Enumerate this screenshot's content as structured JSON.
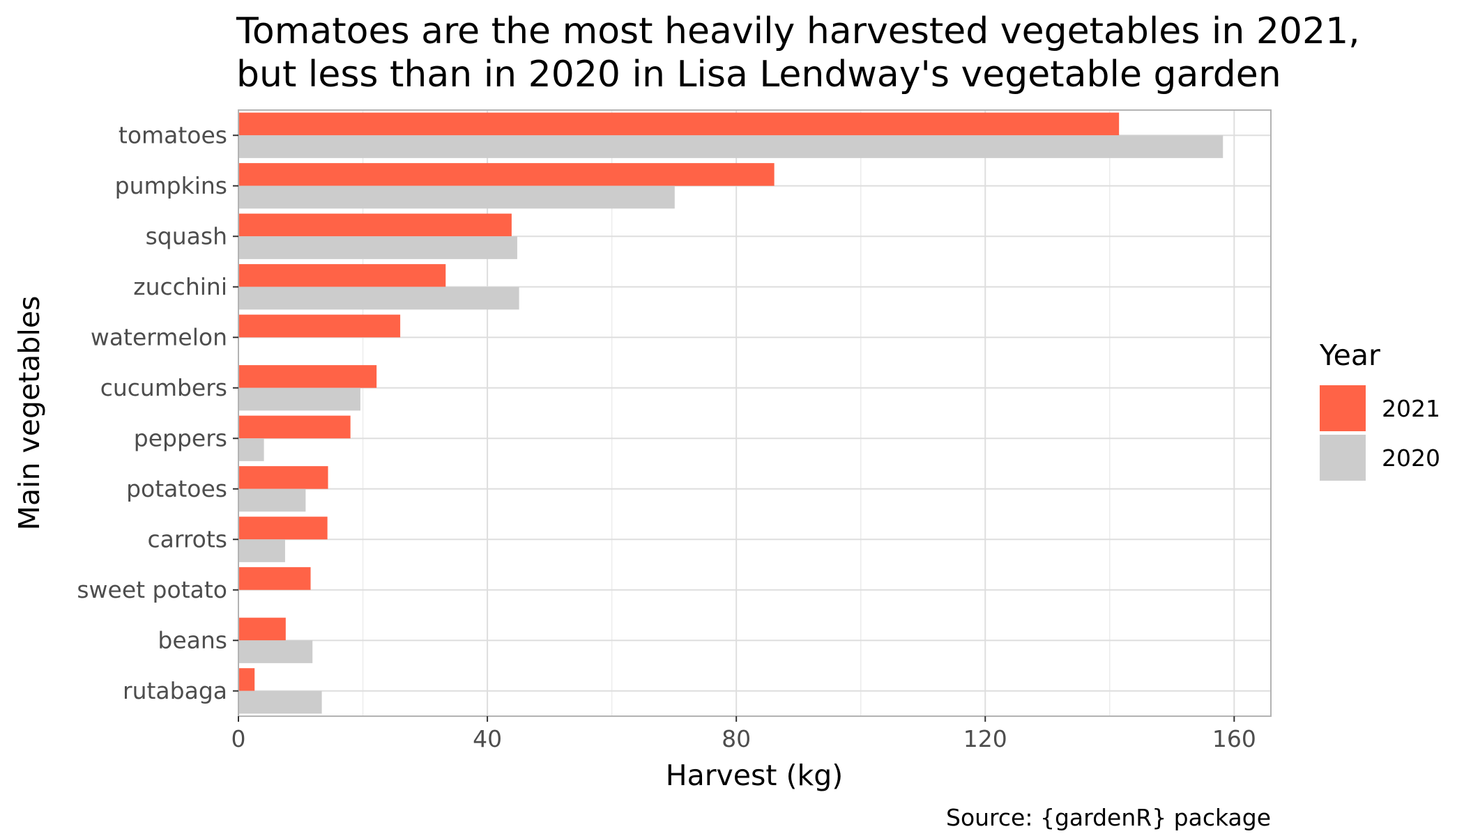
{
  "chart_data": {
    "type": "bar",
    "orientation": "horizontal",
    "title": "Tomatoes are the most heavily harvested vegetables in 2021,\nbut less than in 2020 in Lisa Lendway's vegetable garden",
    "title_lines": [
      "Tomatoes are the most heavily harvested vegetables in 2021,",
      "but less than in 2020 in Lisa Lendway's vegetable garden"
    ],
    "xlabel": "Harvest (kg)",
    "ylabel": "Main vegetables",
    "caption": "Source: {gardenR} package",
    "xlim": [
      0,
      165.9
    ],
    "x_ticks": [
      0,
      40,
      80,
      120,
      160
    ],
    "grid": true,
    "legend": {
      "title": "Year",
      "position": "right"
    },
    "categories": [
      "tomatoes",
      "pumpkins",
      "squash",
      "zucchini",
      "watermelon",
      "cucumbers",
      "peppers",
      "potatoes",
      "carrots",
      "sweet potato",
      "beans",
      "rutabaga"
    ],
    "series": [
      {
        "name": "2021",
        "color": "#FF6347",
        "values": [
          141.5,
          86.1,
          43.9,
          33.3,
          26.0,
          22.2,
          18.0,
          14.4,
          14.3,
          11.6,
          7.6,
          2.6
        ]
      },
      {
        "name": "2020",
        "color": "#CCCCCC",
        "values": [
          158.2,
          70.1,
          44.8,
          45.1,
          null,
          19.6,
          4.1,
          10.8,
          7.5,
          null,
          11.9,
          13.4
        ]
      }
    ]
  }
}
